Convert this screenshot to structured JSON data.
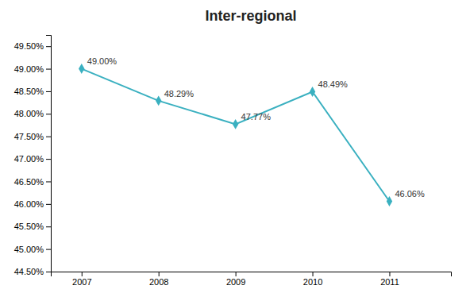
{
  "chart_data": {
    "type": "line",
    "title": "Inter-regional",
    "x": [
      2007,
      2008,
      2009,
      2010,
      2011
    ],
    "values": [
      0.49,
      0.4829,
      0.4777,
      0.4849,
      0.4606
    ],
    "value_labels": [
      "49.00%",
      "48.29%",
      "47.77%",
      "48.49%",
      "46.06%"
    ],
    "color": "#3ab0c0",
    "marker": "diamond",
    "xlim": [
      2006.6,
      2011.8
    ],
    "xticks": [
      2007,
      2008,
      2009,
      2010,
      2011
    ],
    "ylim": [
      0.445,
      0.4975
    ],
    "yticks": [
      {
        "value": 0.445,
        "label": "44.50%"
      },
      {
        "value": 0.45,
        "label": "45.00%"
      },
      {
        "value": 0.455,
        "label": "45.50%"
      },
      {
        "value": 0.46,
        "label": "46.00%"
      },
      {
        "value": 0.465,
        "label": "46.50%"
      },
      {
        "value": 0.47,
        "label": "47.00%"
      },
      {
        "value": 0.475,
        "label": "47.50%"
      },
      {
        "value": 0.48,
        "label": "48.00%"
      },
      {
        "value": 0.485,
        "label": "48.50%"
      },
      {
        "value": 0.49,
        "label": "49.00%"
      },
      {
        "value": 0.495,
        "label": "49.50%"
      }
    ],
    "grid": false
  }
}
